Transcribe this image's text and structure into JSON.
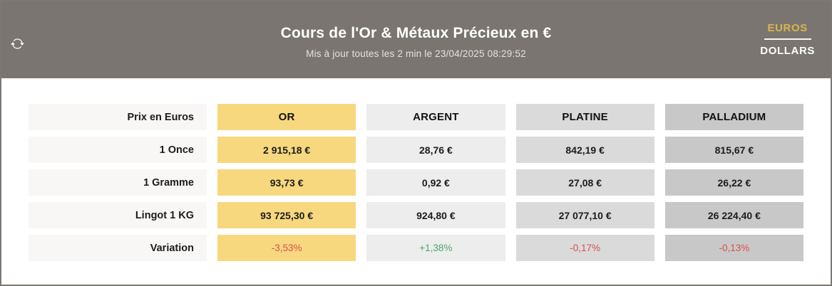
{
  "header": {
    "title": "Cours de l'Or & Métaux Précieux en €",
    "subtitle": "Mis à jour toutes les 2 min le 23/04/2025 08:29:52",
    "bg_color": "#7a7570",
    "refresh_icon": "refresh-icon",
    "currency_toggle": {
      "options": [
        "EUROS",
        "DOLLARS"
      ],
      "selected": "EUROS",
      "selected_color": "#d9b54e",
      "unselected_color": "#ffffff"
    }
  },
  "table": {
    "corner_label": "Prix en Euros",
    "label_bg": "#f8f7f6",
    "columns": [
      {
        "id": "or",
        "label": "OR",
        "bg": "#f7d87e"
      },
      {
        "id": "argent",
        "label": "ARGENT",
        "bg": "#ededed"
      },
      {
        "id": "platine",
        "label": "PLATINE",
        "bg": "#dadada"
      },
      {
        "id": "palladium",
        "label": "PALLADIUM",
        "bg": "#c9c8c8"
      }
    ],
    "rows": [
      {
        "label": "1 Once",
        "values": [
          "2 915,18 €",
          "28,76 €",
          "842,19 €",
          "815,67 €"
        ]
      },
      {
        "label": "1 Gramme",
        "values": [
          "93,73 €",
          "0,92 €",
          "27,08 €",
          "26,22 €"
        ]
      },
      {
        "label": "Lingot 1 KG",
        "values": [
          "93 725,30 €",
          "924,80 €",
          "27 077,10 €",
          "26 224,40 €"
        ]
      },
      {
        "label": "Variation",
        "values": [
          "-3,53%",
          "+1,38%",
          "-0,17%",
          "-0,13%"
        ],
        "variation": true,
        "directions": [
          "down",
          "up",
          "down",
          "down"
        ]
      }
    ],
    "colors": {
      "positive": "#47a96b",
      "negative": "#d6504e"
    }
  }
}
